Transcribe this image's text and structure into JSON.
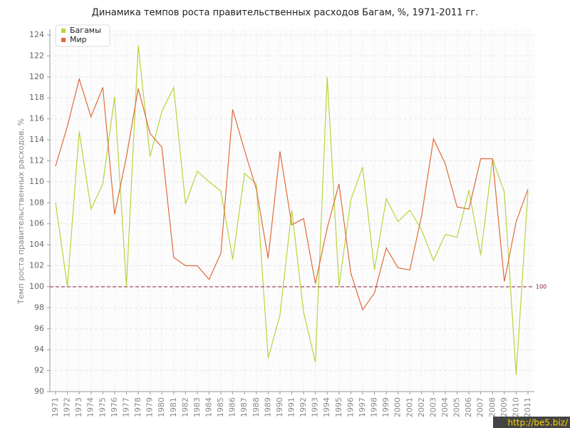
{
  "chart_data": {
    "type": "line",
    "title": "Динамика темпов роста правительственных расходов Багам, %, 1971-2011 гг.",
    "y_label": "Темп роста правительственных расходов, %",
    "categories": [
      "1971",
      "1972",
      "1973",
      "1974",
      "1975",
      "1976",
      "1977",
      "1978",
      "1979",
      "1980",
      "1981",
      "1982",
      "1983",
      "1984",
      "1985",
      "1986",
      "1987",
      "1988",
      "1989",
      "1990",
      "1991",
      "1992",
      "1993",
      "1994",
      "1995",
      "1996",
      "1997",
      "1998",
      "1999",
      "2000",
      "2001",
      "2002",
      "2003",
      "2004",
      "2005",
      "2006",
      "2007",
      "2008",
      "2009",
      "2010",
      "2011"
    ],
    "series": [
      {
        "name": "Багамы",
        "color": "#b5d63a",
        "values": [
          108.0,
          100,
          114.8,
          107.4,
          109.8,
          118.1,
          100,
          123.0,
          112.4,
          116.7,
          119.0,
          107.9,
          111.0,
          110.0,
          109.1,
          102.6,
          110.8,
          109.8,
          93.2,
          97.3,
          107.3,
          97.6,
          92.8,
          120.0,
          100,
          108.3,
          111.4,
          101.6,
          108.4,
          106.2,
          107.3,
          105.4,
          102.5,
          105.0,
          104.7,
          109.2,
          103.0,
          112.2,
          109.0,
          91.6,
          109.1
        ]
      },
      {
        "name": "Мир",
        "color": "#e06a3a",
        "values": [
          111.5,
          115.3,
          119.8,
          116.2,
          119.0,
          106.9,
          112.4,
          118.9,
          114.6,
          113.3,
          102.8,
          102.0,
          102.0,
          100.7,
          103.2,
          116.9,
          113.0,
          109.3,
          102.7,
          112.9,
          105.9,
          106.5,
          100.3,
          105.6,
          109.8,
          101.3,
          97.8,
          99.4,
          103.7,
          101.8,
          101.6,
          106.8,
          114.1,
          111.7,
          107.6,
          107.4,
          112.2,
          112.2,
          100.5,
          106.2,
          109.3
        ]
      }
    ],
    "ylim": [
      90,
      124
    ],
    "yticks": [
      90,
      92,
      94,
      96,
      98,
      100,
      102,
      104,
      106,
      108,
      110,
      112,
      114,
      116,
      118,
      120,
      122,
      124
    ],
    "hline": 100,
    "grid": true,
    "legend": "top-left",
    "watermark": "http://be5.biz/"
  }
}
